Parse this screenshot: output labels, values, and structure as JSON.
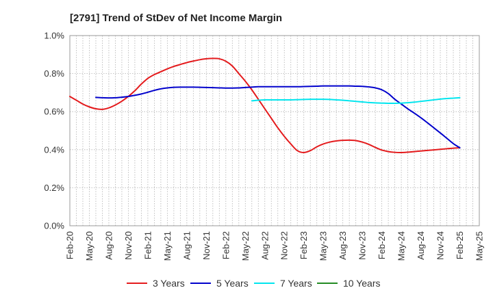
{
  "chart_data": {
    "type": "line",
    "title": "[2791]  Trend of StDev of Net Income Margin",
    "xlabel": "",
    "ylabel": "",
    "y_unit": "%",
    "ylim": [
      0.0,
      1.0
    ],
    "y_ticks": [
      "0.0%",
      "0.2%",
      "0.4%",
      "0.6%",
      "0.8%",
      "1.0%"
    ],
    "y_tick_values": [
      0.0,
      0.2,
      0.4,
      0.6,
      0.8,
      1.0
    ],
    "x_ticks": [
      "Feb-20",
      "May-20",
      "Aug-20",
      "Nov-20",
      "Feb-21",
      "May-21",
      "Aug-21",
      "Nov-21",
      "Feb-22",
      "May-22",
      "Aug-22",
      "Nov-22",
      "Feb-23",
      "May-23",
      "Aug-23",
      "Nov-23",
      "Feb-24",
      "May-24",
      "Aug-24",
      "Nov-24",
      "Feb-25",
      "May-25"
    ],
    "grid": true,
    "legend_position": "bottom",
    "series": [
      {
        "name": "3 Years",
        "color": "#e41a1c",
        "points": [
          [
            "Feb-20",
            0.68
          ],
          [
            "Mar-20",
            0.66
          ],
          [
            "Apr-20",
            0.64
          ],
          [
            "May-20",
            0.625
          ],
          [
            "Jun-20",
            0.615
          ],
          [
            "Jul-20",
            0.612
          ],
          [
            "Aug-20",
            0.62
          ],
          [
            "Sep-20",
            0.635
          ],
          [
            "Oct-20",
            0.655
          ],
          [
            "Nov-20",
            0.68
          ],
          [
            "Dec-20",
            0.71
          ],
          [
            "Jan-21",
            0.745
          ],
          [
            "Feb-21",
            0.775
          ],
          [
            "Mar-21",
            0.795
          ],
          [
            "Apr-21",
            0.81
          ],
          [
            "May-21",
            0.825
          ],
          [
            "Jun-21",
            0.838
          ],
          [
            "Jul-21",
            0.848
          ],
          [
            "Aug-21",
            0.858
          ],
          [
            "Sep-21",
            0.866
          ],
          [
            "Oct-21",
            0.873
          ],
          [
            "Nov-21",
            0.878
          ],
          [
            "Dec-21",
            0.88
          ],
          [
            "Jan-22",
            0.878
          ],
          [
            "Feb-22",
            0.865
          ],
          [
            "Mar-22",
            0.84
          ],
          [
            "Apr-22",
            0.8
          ],
          [
            "May-22",
            0.76
          ],
          [
            "Jun-22",
            0.715
          ],
          [
            "Jul-22",
            0.665
          ],
          [
            "Aug-22",
            0.615
          ],
          [
            "Sep-22",
            0.565
          ],
          [
            "Oct-22",
            0.515
          ],
          [
            "Nov-22",
            0.47
          ],
          [
            "Dec-22",
            0.43
          ],
          [
            "Jan-23",
            0.395
          ],
          [
            "Feb-23",
            0.385
          ],
          [
            "Mar-23",
            0.395
          ],
          [
            "Apr-23",
            0.415
          ],
          [
            "May-23",
            0.43
          ],
          [
            "Jun-23",
            0.44
          ],
          [
            "Jul-23",
            0.446
          ],
          [
            "Aug-23",
            0.449
          ],
          [
            "Sep-23",
            0.45
          ],
          [
            "Oct-23",
            0.448
          ],
          [
            "Nov-23",
            0.44
          ],
          [
            "Dec-23",
            0.428
          ],
          [
            "Jan-24",
            0.412
          ],
          [
            "Feb-24",
            0.398
          ],
          [
            "Mar-24",
            0.39
          ],
          [
            "Apr-24",
            0.386
          ],
          [
            "May-24",
            0.385
          ],
          [
            "Jun-24",
            0.387
          ],
          [
            "Jul-24",
            0.39
          ],
          [
            "Aug-24",
            0.393
          ],
          [
            "Sep-24",
            0.396
          ],
          [
            "Oct-24",
            0.399
          ],
          [
            "Nov-24",
            0.402
          ],
          [
            "Dec-24",
            0.405
          ],
          [
            "Jan-25",
            0.408
          ],
          [
            "Feb-25",
            0.41
          ]
        ]
      },
      {
        "name": "5 Years",
        "color": "#0000cc",
        "points": [
          [
            "Feb-20",
            0.675
          ],
          [
            "Mar-20",
            0.673
          ],
          [
            "Apr-20",
            0.672
          ],
          [
            "May-20",
            0.673
          ],
          [
            "Jun-20",
            0.676
          ],
          [
            "Jul-20",
            0.68
          ],
          [
            "Aug-20",
            0.686
          ],
          [
            "Sep-20",
            0.693
          ],
          [
            "Oct-20",
            0.702
          ],
          [
            "Nov-20",
            0.712
          ],
          [
            "Dec-20",
            0.72
          ],
          [
            "Jan-21",
            0.725
          ],
          [
            "Feb-21",
            0.728
          ],
          [
            "Mar-21",
            0.729
          ],
          [
            "Apr-21",
            0.729
          ],
          [
            "May-21",
            0.729
          ],
          [
            "Jun-21",
            0.728
          ],
          [
            "Jul-21",
            0.727
          ],
          [
            "Aug-21",
            0.726
          ],
          [
            "Sep-21",
            0.725
          ],
          [
            "Oct-21",
            0.724
          ],
          [
            "Nov-21",
            0.724
          ],
          [
            "Dec-21",
            0.725
          ],
          [
            "Jan-22",
            0.727
          ],
          [
            "Feb-22",
            0.729
          ],
          [
            "Mar-22",
            0.731
          ],
          [
            "Apr-22",
            0.731
          ],
          [
            "May-22",
            0.731
          ],
          [
            "Jun-22",
            0.731
          ],
          [
            "Jul-22",
            0.731
          ],
          [
            "Aug-22",
            0.731
          ],
          [
            "Sep-22",
            0.731
          ],
          [
            "Oct-22",
            0.732
          ],
          [
            "Nov-22",
            0.733
          ],
          [
            "Dec-22",
            0.734
          ],
          [
            "Jan-23",
            0.735
          ],
          [
            "Feb-23",
            0.735
          ],
          [
            "Mar-23",
            0.735
          ],
          [
            "Apr-23",
            0.735
          ],
          [
            "May-23",
            0.735
          ],
          [
            "Jun-23",
            0.734
          ],
          [
            "Jul-23",
            0.733
          ],
          [
            "Aug-23",
            0.73
          ],
          [
            "Sep-23",
            0.725
          ],
          [
            "Oct-23",
            0.715
          ],
          [
            "Nov-23",
            0.695
          ],
          [
            "Dec-23",
            0.665
          ],
          [
            "Jan-24",
            0.64
          ],
          [
            "Feb-24",
            0.615
          ],
          [
            "Mar-24",
            0.592
          ],
          [
            "Apr-24",
            0.568
          ],
          [
            "May-24",
            0.542
          ],
          [
            "Jun-24",
            0.515
          ],
          [
            "Jul-24",
            0.488
          ],
          [
            "Aug-24",
            0.46
          ],
          [
            "Sep-24",
            0.432
          ],
          [
            "Oct-24",
            0.41
          ]
        ],
        "x_offset_months": 4
      },
      {
        "name": "7 Years",
        "color": "#00e5ee",
        "points": [
          [
            "Jun-22",
            0.657
          ],
          [
            "Jul-22",
            0.66
          ],
          [
            "Aug-22",
            0.662
          ],
          [
            "Sep-22",
            0.662
          ],
          [
            "Oct-22",
            0.662
          ],
          [
            "Nov-22",
            0.662
          ],
          [
            "Dec-22",
            0.662
          ],
          [
            "Jan-23",
            0.663
          ],
          [
            "Feb-23",
            0.664
          ],
          [
            "Mar-23",
            0.665
          ],
          [
            "Apr-23",
            0.665
          ],
          [
            "May-23",
            0.665
          ],
          [
            "Jun-23",
            0.664
          ],
          [
            "Jul-23",
            0.662
          ],
          [
            "Aug-23",
            0.66
          ],
          [
            "Sep-23",
            0.657
          ],
          [
            "Oct-23",
            0.654
          ],
          [
            "Nov-23",
            0.651
          ],
          [
            "Dec-23",
            0.648
          ],
          [
            "Jan-24",
            0.646
          ],
          [
            "Feb-24",
            0.645
          ],
          [
            "Mar-24",
            0.644
          ],
          [
            "Apr-24",
            0.644
          ],
          [
            "May-24",
            0.645
          ],
          [
            "Jun-24",
            0.647
          ],
          [
            "Jul-24",
            0.65
          ],
          [
            "Aug-24",
            0.654
          ],
          [
            "Sep-24",
            0.658
          ],
          [
            "Oct-24",
            0.662
          ],
          [
            "Nov-24",
            0.666
          ],
          [
            "Dec-24",
            0.669
          ],
          [
            "Jan-25",
            0.671
          ],
          [
            "Feb-25",
            0.673
          ]
        ]
      },
      {
        "name": "10 Years",
        "color": "#228b22",
        "points": []
      }
    ]
  }
}
